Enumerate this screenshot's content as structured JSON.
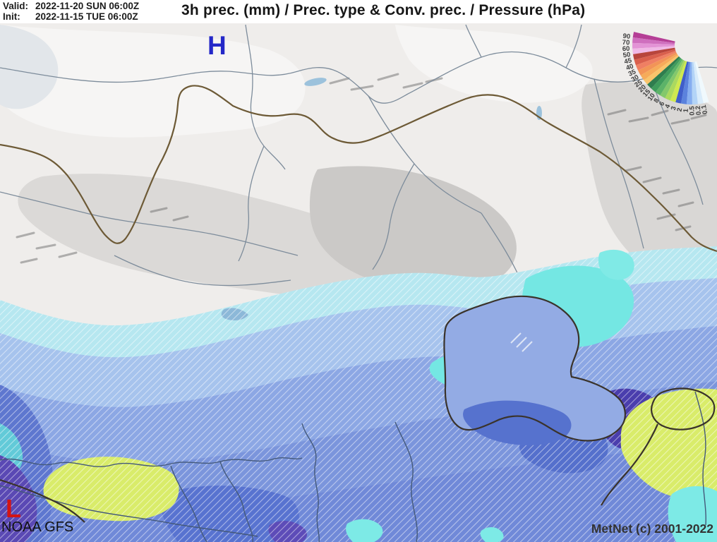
{
  "header": {
    "valid_label": "Valid:",
    "valid_value": "2022-11-20 SUN 06:00Z",
    "init_label": "Init:",
    "init_value": "2022-11-15 TUE 06:00Z",
    "title": "3h prec. (mm) / Prec. type & Conv. prec. / Pressure (hPa)"
  },
  "map": {
    "high_pressure_label": "H",
    "high_pressure_color": "#2428c8",
    "low_pressure_label": "L",
    "low_pressure_color": "#d41414"
  },
  "footer": {
    "model_label": "NOAA GFS",
    "credit_label": "MetNet (c) 2001-2022"
  },
  "legend": {
    "description": "3h precipitation amount scale (mm)",
    "tick_labels": [
      "90",
      "70",
      "60",
      "50",
      "45",
      "40",
      "35",
      "30",
      "25",
      "20",
      "15",
      "10",
      "8",
      "6",
      "4",
      "3",
      "2",
      "1",
      "0.5",
      "0.2",
      "0.1"
    ],
    "wedge_colors": [
      "#b53e96",
      "#cf6fbe",
      "#e393d6",
      "#f0b9e6",
      "#b8453c",
      "#d95f4d",
      "#ef7f63",
      "#f29457",
      "#f6ab5a",
      "#f9c46b",
      "#2f7d4e",
      "#3f9c5c",
      "#5cb368",
      "#83c86b",
      "#abd95e",
      "#cfe94f",
      "#3f5ec9",
      "#5b82dd",
      "#86aef0",
      "#b3d4f7",
      "#d9ecfb",
      "#f0f9fd"
    ],
    "label_color": "#3c3c3c"
  }
}
